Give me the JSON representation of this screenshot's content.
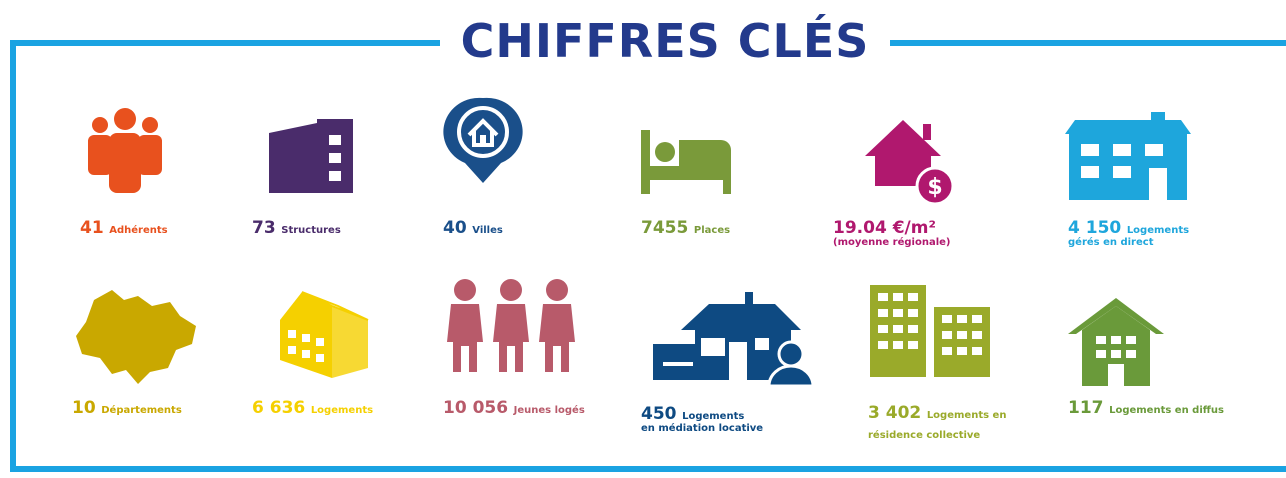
{
  "title": "CHIFFRES CLÉS",
  "items": [
    {
      "number": "41",
      "label": "Adhérents"
    },
    {
      "number": "73",
      "label": "Structures"
    },
    {
      "number": "40",
      "label": "Villes"
    },
    {
      "number": "7455",
      "label": "Places"
    },
    {
      "number": "19.04 €/m²",
      "sublabel": "(moyenne régionale)"
    },
    {
      "number": "4 150",
      "label": "Logements",
      "sublabel": "gérés en direct"
    },
    {
      "number": "10",
      "label": "Départements"
    },
    {
      "number": "6 636",
      "label": "Logements"
    },
    {
      "number": "10 056",
      "label": "Jeunes logés"
    },
    {
      "number": "450",
      "label": "Logements",
      "sublabel": "en médiation locative"
    },
    {
      "number": "3 402",
      "label": "Logements en",
      "sublabel": "résidence collective"
    },
    {
      "number": "117",
      "label": "Logements en diffus"
    }
  ]
}
